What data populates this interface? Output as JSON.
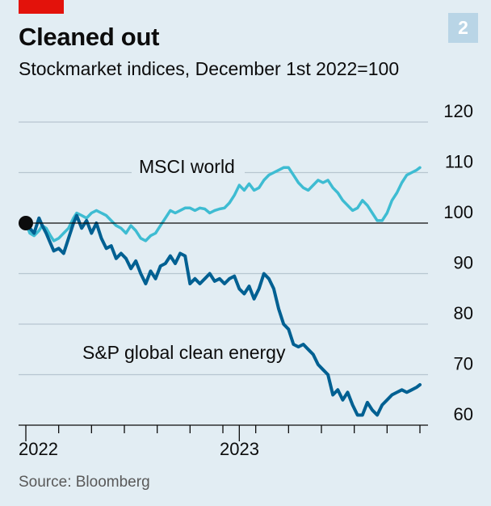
{
  "header": {
    "title": "Cleaned out",
    "subtitle": "Stockmarket indices, December 1st 2022=100",
    "chart_number": "2"
  },
  "footer": {
    "source": "Source: Bloomberg"
  },
  "chart_data": {
    "type": "line",
    "title": "Cleaned out",
    "subtitle": "Stockmarket indices, December 1st 2022=100",
    "xlabel": "",
    "ylabel": "",
    "ylim": [
      60,
      120
    ],
    "yticks": [
      60,
      70,
      80,
      90,
      100,
      110,
      120
    ],
    "xlim": [
      0,
      12
    ],
    "xtick_months": [
      0,
      1,
      2,
      3,
      4,
      5,
      6,
      7,
      8,
      9,
      10,
      11,
      12
    ],
    "xtick_labels": [
      {
        "x": 0,
        "label": "2022"
      },
      {
        "x": 6.5,
        "label": "2023"
      }
    ],
    "grid": true,
    "baseline": 100,
    "start_marker": {
      "x": 0,
      "y": 100
    },
    "series": [
      {
        "name": "MSCI world",
        "color": "#3ebcd2",
        "x": [
          0,
          0.12,
          0.25,
          0.4,
          0.5,
          0.62,
          0.75,
          0.85,
          1.0,
          1.15,
          1.3,
          1.45,
          1.55,
          1.7,
          1.85,
          2.0,
          2.15,
          2.3,
          2.45,
          2.6,
          2.75,
          2.9,
          3.05,
          3.2,
          3.35,
          3.5,
          3.65,
          3.8,
          3.95,
          4.1,
          4.25,
          4.4,
          4.55,
          4.7,
          4.85,
          5.0,
          5.15,
          5.3,
          5.45,
          5.6,
          5.75,
          5.9,
          6.05,
          6.2,
          6.35,
          6.5,
          6.65,
          6.8,
          6.95,
          7.1,
          7.25,
          7.4,
          7.55,
          7.7,
          7.85,
          8.0,
          8.15,
          8.3,
          8.45,
          8.6,
          8.75,
          8.9,
          9.05,
          9.2,
          9.35,
          9.5,
          9.65,
          9.8,
          9.95,
          10.1,
          10.25,
          10.4,
          10.55,
          10.7,
          10.85,
          11.0,
          11.15,
          11.3,
          11.45,
          11.6,
          11.75,
          11.9,
          12.0
        ],
        "y": [
          100,
          98,
          97.5,
          98.5,
          99.5,
          99,
          97.5,
          96.5,
          97,
          98,
          99,
          101,
          102,
          101.5,
          101,
          102,
          102.5,
          102,
          101.5,
          100.5,
          99.5,
          99,
          98,
          99.5,
          98.5,
          97,
          96.5,
          97.5,
          98,
          99.5,
          101,
          102.5,
          102,
          102.5,
          103,
          103,
          102.5,
          103,
          102.8,
          102,
          102.5,
          102.8,
          103,
          104,
          105.5,
          107.5,
          106.5,
          107.8,
          106.5,
          107,
          108.5,
          109.5,
          110,
          110.5,
          111,
          111,
          109.5,
          108,
          107,
          106.5,
          107.5,
          108.5,
          108,
          108.5,
          107,
          106,
          104.5,
          103.5,
          102.5,
          103,
          104.5,
          103.5,
          102,
          100.5,
          100.5,
          102,
          104.5,
          106,
          108,
          109.5,
          110,
          110.5,
          111
        ]
      },
      {
        "name": "S&P global clean energy",
        "color": "#006092",
        "x": [
          0,
          0.12,
          0.25,
          0.4,
          0.5,
          0.62,
          0.75,
          0.85,
          1.0,
          1.15,
          1.3,
          1.45,
          1.55,
          1.7,
          1.85,
          2.0,
          2.15,
          2.3,
          2.45,
          2.6,
          2.75,
          2.9,
          3.05,
          3.2,
          3.35,
          3.5,
          3.65,
          3.8,
          3.95,
          4.1,
          4.25,
          4.4,
          4.55,
          4.7,
          4.85,
          5.0,
          5.15,
          5.3,
          5.45,
          5.6,
          5.75,
          5.9,
          6.05,
          6.2,
          6.35,
          6.5,
          6.65,
          6.8,
          6.95,
          7.1,
          7.25,
          7.4,
          7.55,
          7.7,
          7.85,
          8.0,
          8.15,
          8.3,
          8.45,
          8.6,
          8.75,
          8.9,
          9.05,
          9.2,
          9.35,
          9.5,
          9.65,
          9.8,
          9.95,
          10.1,
          10.25,
          10.4,
          10.55,
          10.7,
          10.85,
          11.0,
          11.15,
          11.3,
          11.45,
          11.6,
          11.75,
          11.9,
          12.0
        ],
        "y": [
          100,
          99,
          98,
          101,
          99.5,
          98,
          96,
          94.5,
          95,
          94,
          97,
          100,
          101.5,
          99,
          100.5,
          98,
          100,
          97,
          95,
          95.5,
          93,
          94,
          93,
          91,
          92.5,
          90,
          88,
          90.5,
          89,
          91.5,
          92,
          93.5,
          92,
          94,
          93.5,
          88,
          89,
          88,
          89,
          90,
          88.5,
          89,
          88,
          89,
          89.5,
          87,
          86,
          87.5,
          85,
          87,
          90,
          89,
          87,
          83,
          80,
          79,
          76,
          75.5,
          76,
          75,
          74,
          72,
          71,
          70,
          66,
          67,
          65,
          66.5,
          64,
          62,
          62,
          64.5,
          63,
          62,
          64,
          65,
          66,
          66.5,
          67,
          66.5,
          67,
          67.5,
          68
        ]
      }
    ]
  }
}
